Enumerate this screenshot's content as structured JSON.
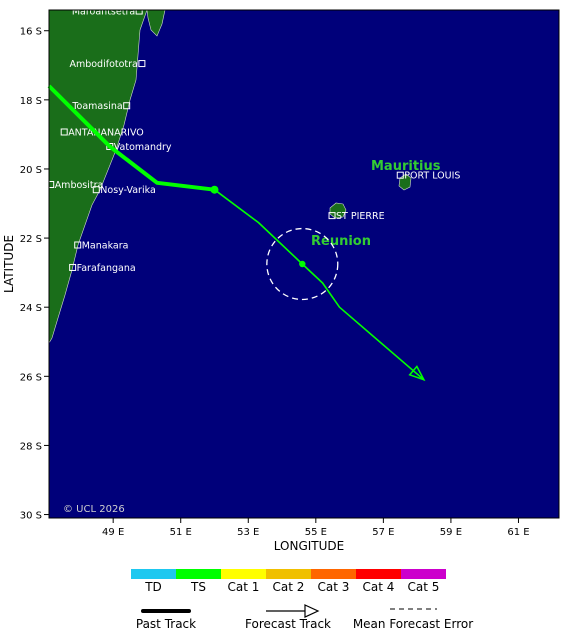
{
  "axes": {
    "xlabel": "LONGITUDE",
    "ylabel": "LATITUDE",
    "x_ticks": [
      {
        "value": 49,
        "label": "49 E"
      },
      {
        "value": 51,
        "label": "51 E"
      },
      {
        "value": 53,
        "label": "53 E"
      },
      {
        "value": 55,
        "label": "55 E"
      },
      {
        "value": 57,
        "label": "57 E"
      },
      {
        "value": 59,
        "label": "59 E"
      },
      {
        "value": 61,
        "label": "61 E"
      }
    ],
    "y_ticks": [
      {
        "value": -16,
        "label": "16 S"
      },
      {
        "value": -18,
        "label": "18 S"
      },
      {
        "value": -20,
        "label": "20 S"
      },
      {
        "value": -22,
        "label": "22 S"
      },
      {
        "value": -24,
        "label": "24 S"
      },
      {
        "value": -26,
        "label": "26 S"
      },
      {
        "value": -28,
        "label": "28 S"
      },
      {
        "value": -30,
        "label": "30 S"
      }
    ],
    "lon_range": [
      47.1,
      62.2
    ],
    "lat_range": [
      -30.1,
      -15.4
    ]
  },
  "places": [
    {
      "name": "Maroantsetra",
      "lon": 49.77,
      "lat": -15.43
    },
    {
      "name": "Ambodifototra",
      "lon": 49.85,
      "lat": -16.95
    },
    {
      "name": "Toamasina",
      "lon": 49.4,
      "lat": -18.17
    },
    {
      "name": "ANTANANARIVO",
      "lon": 47.55,
      "lat": -18.93
    },
    {
      "name": "Vatomandry",
      "lon": 48.9,
      "lat": -19.35
    },
    {
      "name": "Ambositra",
      "lon": 47.15,
      "lat": -20.45
    },
    {
      "name": "Nosy-Varika",
      "lon": 48.5,
      "lat": -20.6
    },
    {
      "name": "Manakara",
      "lon": 47.95,
      "lat": -22.2
    },
    {
      "name": "Farafangana",
      "lon": 47.8,
      "lat": -22.85
    },
    {
      "name": "ST PIERRE",
      "lon": 55.48,
      "lat": -21.35
    },
    {
      "name": "PORT LOUIS",
      "lon": 57.5,
      "lat": -20.18
    }
  ],
  "island_labels": {
    "mauritius": "Mauritius",
    "reunion": "Reunion"
  },
  "track": {
    "past": [
      {
        "lon": 47.1,
        "lat": -17.6
      },
      {
        "lon": 48.9,
        "lat": -19.35
      },
      {
        "lon": 50.3,
        "lat": -20.4
      },
      {
        "lon": 52.0,
        "lat": -20.6
      }
    ],
    "forecast": [
      {
        "lon": 52.0,
        "lat": -20.6
      },
      {
        "lon": 53.3,
        "lat": -21.55
      },
      {
        "lon": 54.6,
        "lat": -22.75
      },
      {
        "lon": 55.2,
        "lat": -23.3
      },
      {
        "lon": 55.7,
        "lat": -24.0
      },
      {
        "lon": 58.2,
        "lat": -26.1
      }
    ],
    "points": [
      {
        "lon": 52.0,
        "lat": -20.6
      },
      {
        "lon": 54.6,
        "lat": -22.75
      }
    ],
    "error_circle": {
      "lon": 54.6,
      "lat": -22.75,
      "radius_deg": 1.05
    },
    "color": "#00ff00"
  },
  "credit": "© UCL 2026",
  "legend": {
    "categories": [
      {
        "label": "TD",
        "color": "#1ec8f0"
      },
      {
        "label": "TS",
        "color": "#00ff00"
      },
      {
        "label": "Cat 1",
        "color": "#ffff00"
      },
      {
        "label": "Cat 2",
        "color": "#f0c000"
      },
      {
        "label": "Cat 3",
        "color": "#ff6600"
      },
      {
        "label": "Cat 4",
        "color": "#ff0000"
      },
      {
        "label": "Cat 5",
        "color": "#cc00cc"
      }
    ],
    "past_track": "Past Track",
    "forecast_track": "Forecast Track",
    "mean_error": "Mean Forecast Error"
  },
  "colors": {
    "ocean": "#00007a",
    "land": "#1a6e1a"
  }
}
